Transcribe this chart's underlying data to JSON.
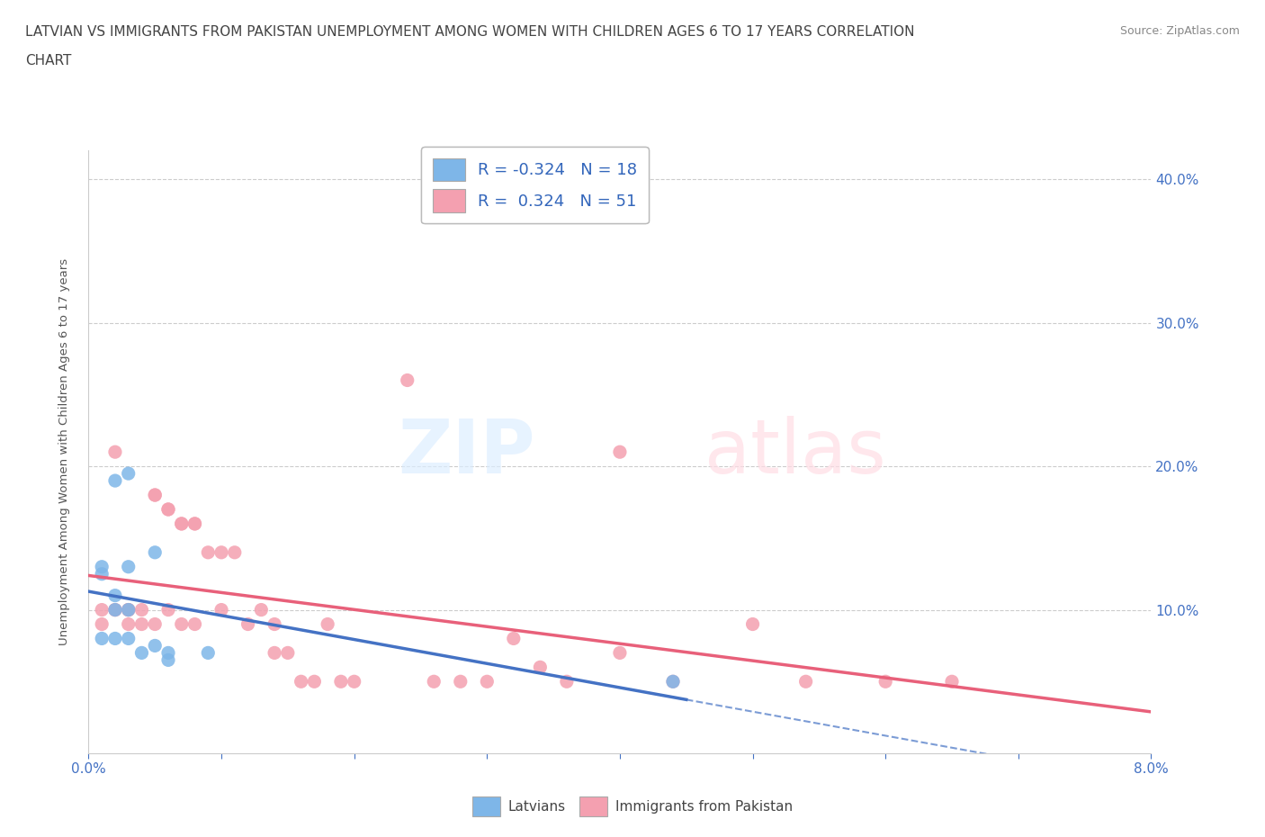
{
  "title_line1": "LATVIAN VS IMMIGRANTS FROM PAKISTAN UNEMPLOYMENT AMONG WOMEN WITH CHILDREN AGES 6 TO 17 YEARS CORRELATION",
  "title_line2": "CHART",
  "source": "Source: ZipAtlas.com",
  "ylabel": "Unemployment Among Women with Children Ages 6 to 17 years",
  "xlim": [
    0.0,
    0.08
  ],
  "ylim": [
    0.0,
    0.42
  ],
  "xticks": [
    0.0,
    0.01,
    0.02,
    0.03,
    0.04,
    0.05,
    0.06,
    0.07,
    0.08
  ],
  "xticklabels": [
    "0.0%",
    "",
    "",
    "",
    "",
    "",
    "",
    "",
    "8.0%"
  ],
  "ytick_positions": [
    0.1,
    0.2,
    0.3,
    0.4
  ],
  "ytick_labels": [
    "10.0%",
    "20.0%",
    "30.0%",
    "40.0%"
  ],
  "latvian_color": "#7EB6E8",
  "pakistan_color": "#F4A0B0",
  "latvian_line_color": "#4472C4",
  "pakistan_line_color": "#E8607A",
  "legend_latvian_label": "R = -0.324   N = 18",
  "legend_pakistan_label": "R =  0.324   N = 51",
  "bottom_legend_latvian": "Latvians",
  "bottom_legend_pakistan": "Immigrants from Pakistan",
  "latvian_x": [
    0.001,
    0.001,
    0.001,
    0.002,
    0.002,
    0.002,
    0.002,
    0.003,
    0.003,
    0.003,
    0.003,
    0.004,
    0.005,
    0.005,
    0.006,
    0.006,
    0.009,
    0.044
  ],
  "latvian_y": [
    0.125,
    0.13,
    0.08,
    0.19,
    0.11,
    0.1,
    0.08,
    0.195,
    0.13,
    0.1,
    0.08,
    0.07,
    0.14,
    0.075,
    0.065,
    0.07,
    0.07,
    0.05
  ],
  "pakistan_x": [
    0.001,
    0.001,
    0.002,
    0.002,
    0.002,
    0.003,
    0.003,
    0.003,
    0.003,
    0.004,
    0.004,
    0.005,
    0.005,
    0.005,
    0.006,
    0.006,
    0.006,
    0.007,
    0.007,
    0.007,
    0.008,
    0.008,
    0.008,
    0.009,
    0.01,
    0.01,
    0.011,
    0.012,
    0.013,
    0.014,
    0.014,
    0.015,
    0.016,
    0.017,
    0.018,
    0.019,
    0.02,
    0.024,
    0.026,
    0.028,
    0.03,
    0.032,
    0.034,
    0.036,
    0.04,
    0.044,
    0.05,
    0.054,
    0.06,
    0.065,
    0.04
  ],
  "pakistan_y": [
    0.09,
    0.1,
    0.1,
    0.1,
    0.21,
    0.1,
    0.1,
    0.1,
    0.09,
    0.09,
    0.1,
    0.18,
    0.18,
    0.09,
    0.17,
    0.17,
    0.1,
    0.09,
    0.16,
    0.16,
    0.16,
    0.16,
    0.09,
    0.14,
    0.14,
    0.1,
    0.14,
    0.09,
    0.1,
    0.09,
    0.07,
    0.07,
    0.05,
    0.05,
    0.09,
    0.05,
    0.05,
    0.26,
    0.05,
    0.05,
    0.05,
    0.08,
    0.06,
    0.05,
    0.07,
    0.05,
    0.09,
    0.05,
    0.05,
    0.05,
    0.21
  ],
  "background_color": "#FFFFFF",
  "grid_color": "#CCCCCC",
  "watermark_zip": "ZIP",
  "watermark_atlas": "atlas",
  "line_solid_end_latvian": 0.045,
  "line_solid_end_pakistan": 0.08
}
